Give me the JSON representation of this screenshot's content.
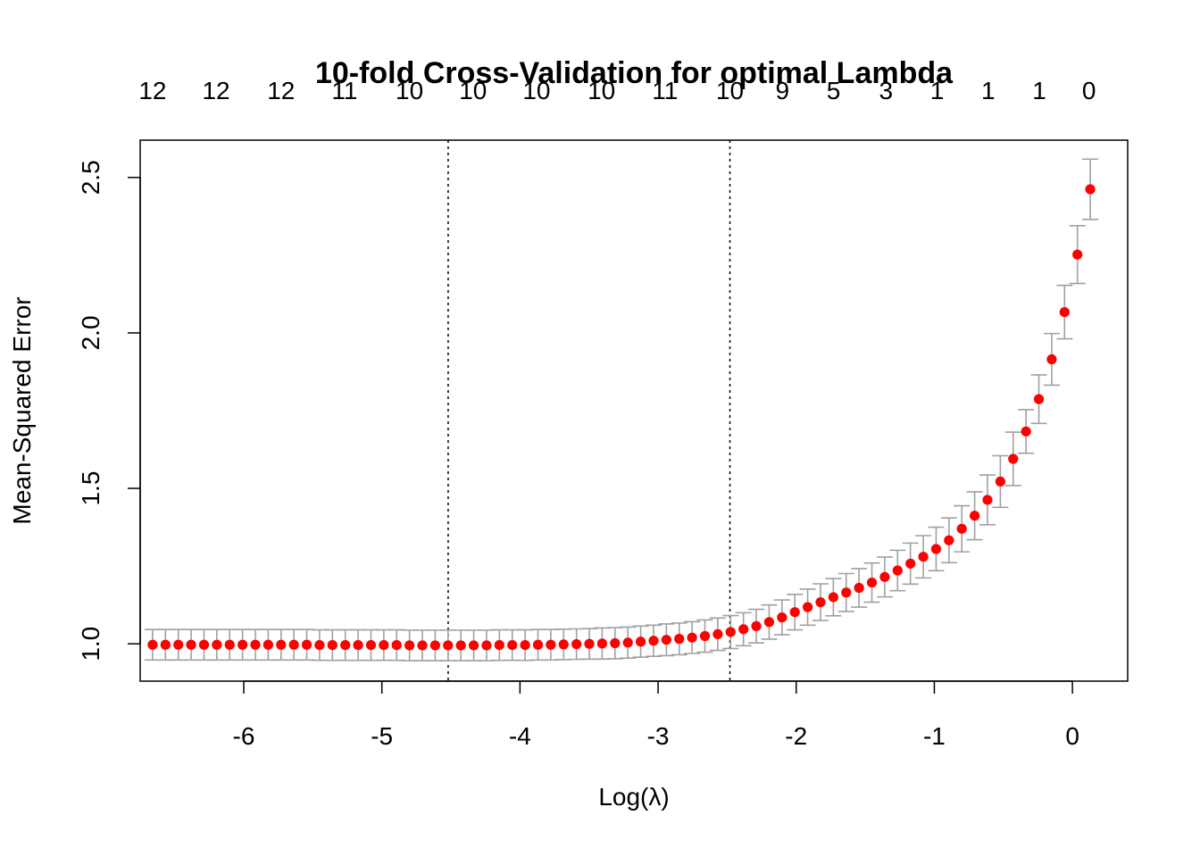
{
  "chart_data": {
    "type": "scatter",
    "title": "10-fold Cross-Validation for optimal Lambda",
    "xlabel": "Log(λ)",
    "ylabel": "Mean-Squared Error",
    "xlim": [
      -6.75,
      0.4
    ],
    "ylim": [
      0.88,
      2.62
    ],
    "x_ticks": [
      -6,
      -5,
      -4,
      -3,
      -2,
      -1,
      0
    ],
    "x_tick_labels": [
      "-6",
      "-5",
      "-4",
      "-3",
      "-2",
      "-1",
      "0"
    ],
    "y_ticks": [
      1.0,
      1.5,
      2.0,
      2.5
    ],
    "y_tick_labels": [
      "1.0",
      "1.5",
      "2.0",
      "2.5"
    ],
    "top_axis": {
      "x": [
        -6.66,
        -6.2,
        -5.73,
        -5.27,
        -4.8,
        -4.34,
        -3.88,
        -3.41,
        -2.95,
        -2.48,
        -2.1,
        -1.73,
        -1.35,
        -0.98,
        -0.61,
        -0.24,
        0.12
      ],
      "labels": [
        "12",
        "12",
        "12",
        "11",
        "10",
        "10",
        "10",
        "10",
        "11",
        "10",
        "9",
        "5",
        "3",
        "1",
        "1",
        "1",
        "0"
      ]
    },
    "vlines": [
      -4.52,
      -2.48
    ],
    "grid": false,
    "series": [
      {
        "color": "#ff0000",
        "error_bar_color": "#a0a0a0",
        "x": [
          -6.66,
          -6.567,
          -6.474,
          -6.381,
          -6.288,
          -6.195,
          -6.102,
          -6.009,
          -5.916,
          -5.823,
          -5.73,
          -5.637,
          -5.544,
          -5.451,
          -5.358,
          -5.265,
          -5.172,
          -5.079,
          -4.986,
          -4.893,
          -4.8,
          -4.707,
          -4.614,
          -4.521,
          -4.428,
          -4.335,
          -4.242,
          -4.149,
          -4.056,
          -3.963,
          -3.87,
          -3.777,
          -3.684,
          -3.591,
          -3.498,
          -3.405,
          -3.312,
          -3.219,
          -3.126,
          -3.033,
          -2.94,
          -2.847,
          -2.754,
          -2.661,
          -2.568,
          -2.475,
          -2.382,
          -2.289,
          -2.196,
          -2.103,
          -2.01,
          -1.917,
          -1.824,
          -1.731,
          -1.638,
          -1.545,
          -1.452,
          -1.359,
          -1.266,
          -1.173,
          -1.08,
          -0.987,
          -0.894,
          -0.801,
          -0.708,
          -0.615,
          -0.522,
          -0.429,
          -0.336,
          -0.243,
          -0.15,
          -0.057,
          0.036,
          0.129
        ],
        "y": [
          0.997,
          0.997,
          0.997,
          0.997,
          0.997,
          0.997,
          0.997,
          0.997,
          0.997,
          0.997,
          0.997,
          0.997,
          0.997,
          0.996,
          0.996,
          0.996,
          0.996,
          0.996,
          0.996,
          0.996,
          0.995,
          0.995,
          0.995,
          0.995,
          0.995,
          0.995,
          0.995,
          0.996,
          0.996,
          0.996,
          0.997,
          0.997,
          0.998,
          0.999,
          1.0,
          1.001,
          1.002,
          1.004,
          1.007,
          1.01,
          1.013,
          1.016,
          1.02,
          1.025,
          1.031,
          1.038,
          1.047,
          1.057,
          1.07,
          1.085,
          1.102,
          1.118,
          1.134,
          1.15,
          1.165,
          1.18,
          1.197,
          1.215,
          1.236,
          1.258,
          1.28,
          1.305,
          1.333,
          1.37,
          1.412,
          1.463,
          1.522,
          1.595,
          1.683,
          1.787,
          1.915,
          2.067,
          2.252,
          2.462
        ],
        "se": [
          0.049,
          0.049,
          0.049,
          0.049,
          0.049,
          0.049,
          0.049,
          0.049,
          0.049,
          0.049,
          0.049,
          0.049,
          0.049,
          0.049,
          0.049,
          0.049,
          0.049,
          0.049,
          0.049,
          0.049,
          0.049,
          0.049,
          0.049,
          0.049,
          0.049,
          0.049,
          0.049,
          0.049,
          0.049,
          0.049,
          0.049,
          0.049,
          0.049,
          0.049,
          0.049,
          0.05,
          0.05,
          0.05,
          0.05,
          0.05,
          0.051,
          0.051,
          0.051,
          0.052,
          0.052,
          0.053,
          0.053,
          0.054,
          0.055,
          0.056,
          0.057,
          0.058,
          0.059,
          0.06,
          0.061,
          0.062,
          0.063,
          0.064,
          0.065,
          0.066,
          0.068,
          0.07,
          0.072,
          0.074,
          0.077,
          0.08,
          0.083,
          0.086,
          0.07,
          0.078,
          0.083,
          0.086,
          0.093,
          0.097
        ]
      }
    ]
  }
}
